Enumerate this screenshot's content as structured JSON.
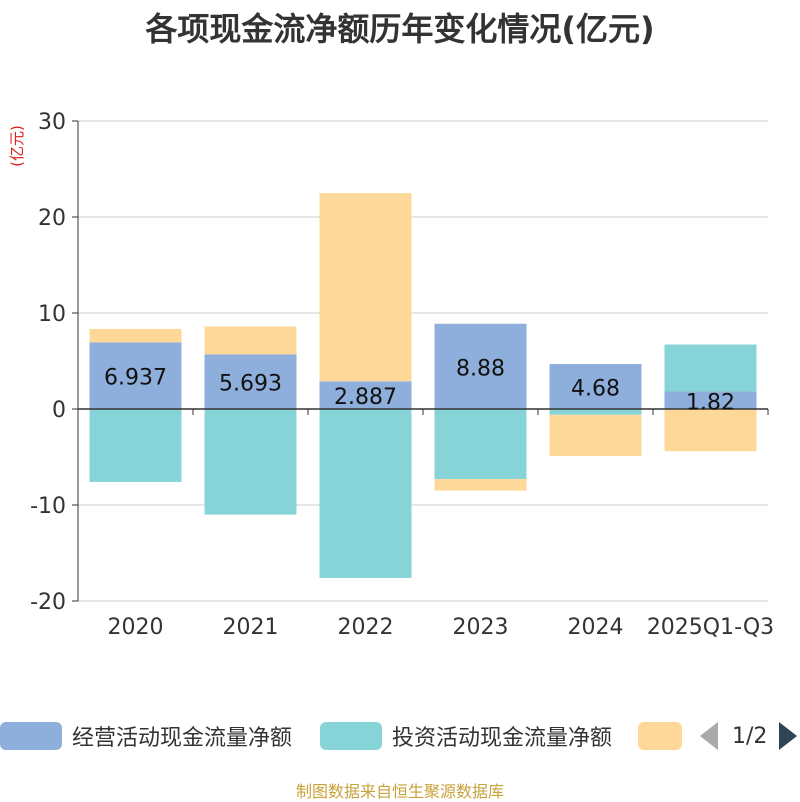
{
  "chart_data": {
    "type": "bar",
    "stacked": true,
    "title": "各项现金流净额历年变化情况(亿元)",
    "ylabel": "(亿元)",
    "xlabel": "",
    "ylim": [
      -20,
      30
    ],
    "yticks": [
      -20,
      -10,
      0,
      10,
      20,
      30
    ],
    "categories": [
      "2020",
      "2021",
      "2022",
      "2023",
      "2024",
      "2025Q1-Q3"
    ],
    "series": [
      {
        "name": "经营活动现金流量净额",
        "color": "#8eaedb",
        "values": [
          6.937,
          5.693,
          2.887,
          8.88,
          4.68,
          1.82
        ],
        "labels": [
          "6.937",
          "5.693",
          "2.887",
          "8.88",
          "4.68",
          "1.82"
        ]
      },
      {
        "name": "投资活动现金流量净额",
        "color": "#87d4d8",
        "values": [
          -7.6,
          -11.0,
          -17.6,
          -7.3,
          -0.6,
          4.9
        ]
      },
      {
        "name": "",
        "color": "#fdd899",
        "values": [
          1.4,
          2.9,
          19.6,
          -1.2,
          -4.3,
          -4.4
        ]
      }
    ],
    "grid": true
  },
  "legend": {
    "page": "1/2"
  },
  "source": "制图数据来自恒生聚源数据库"
}
